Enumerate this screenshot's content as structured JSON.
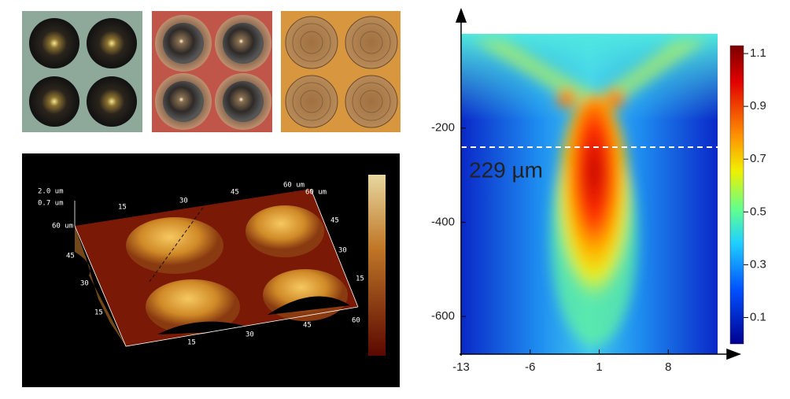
{
  "afm": {
    "labels": [
      "2.0 um",
      "0.7 um",
      "60 um",
      "15",
      "30",
      "45",
      "60 um",
      "60 um",
      "45",
      "30",
      "15",
      "45",
      "30",
      "15",
      "15",
      "30",
      "45",
      "60"
    ]
  },
  "chart_data": {
    "type": "heatmap",
    "xlim": [
      -13,
      13
    ],
    "xticks": [
      -13,
      -6,
      1,
      8
    ],
    "ylim": [
      -680,
      0
    ],
    "yticks": [
      -200,
      -400,
      -600
    ],
    "colorbar": {
      "lim": [
        0,
        1.13
      ],
      "ticks": [
        1.1,
        0.9,
        0.7,
        0.5,
        0.3,
        0.1
      ]
    },
    "annotations": [
      "229 µm"
    ]
  }
}
